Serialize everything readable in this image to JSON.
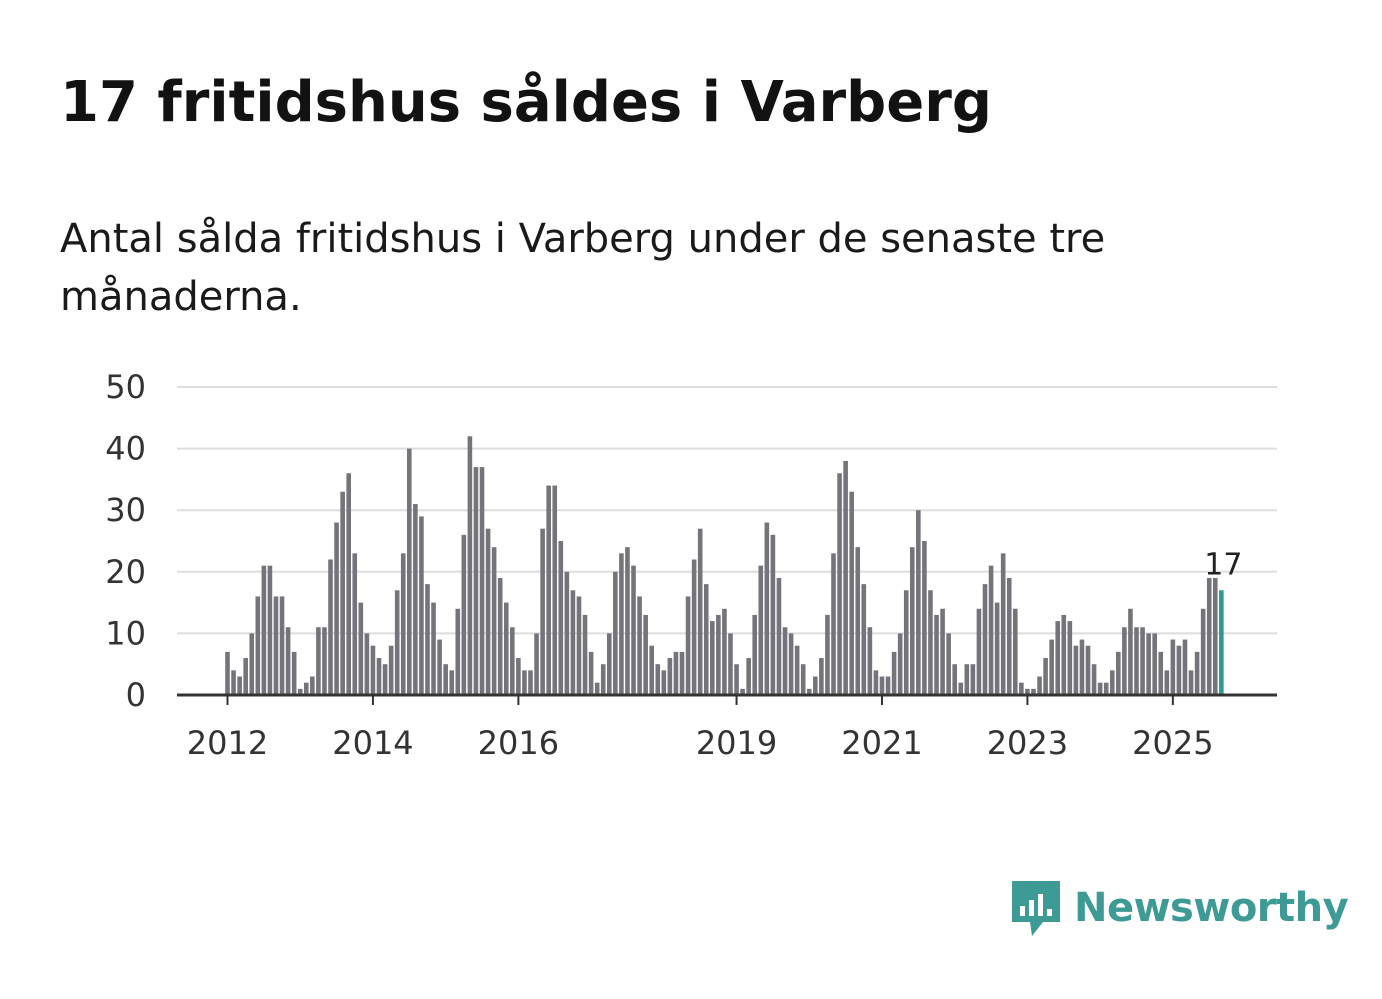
{
  "title": "17 fritidshus såldes i Varberg",
  "subtitle": "Antal sålda fritidshus i Varberg under de senaste tre månaderna.",
  "brand": {
    "name": "Newsworthy",
    "color": "#3e9a94",
    "icon": "newsworthy-logo-icon"
  },
  "colors": {
    "bar": "#75747a",
    "highlight": "#2a9b95",
    "grid": "#dddddd",
    "axis": "#333333"
  },
  "chart_data": {
    "type": "bar",
    "ylim": [
      0,
      50
    ],
    "yticks": [
      0,
      10,
      20,
      30,
      40,
      50
    ],
    "xticks": [
      "2012",
      "2014",
      "2016",
      "2019",
      "2021",
      "2023",
      "2025"
    ],
    "grid": true,
    "start": "2012-01",
    "values": [
      7,
      4,
      3,
      6,
      10,
      16,
      21,
      21,
      16,
      16,
      11,
      7,
      1,
      2,
      3,
      11,
      11,
      22,
      28,
      33,
      36,
      23,
      15,
      10,
      8,
      6,
      5,
      8,
      17,
      23,
      40,
      31,
      29,
      18,
      15,
      9,
      5,
      4,
      14,
      26,
      42,
      37,
      37,
      27,
      24,
      19,
      15,
      11,
      6,
      4,
      4,
      10,
      27,
      34,
      34,
      25,
      20,
      17,
      16,
      13,
      7,
      2,
      5,
      10,
      20,
      23,
      24,
      21,
      16,
      13,
      8,
      5,
      4,
      6,
      7,
      7,
      16,
      22,
      27,
      18,
      12,
      13,
      14,
      10,
      5,
      1,
      6,
      13,
      21,
      28,
      26,
      19,
      11,
      10,
      8,
      5,
      1,
      3,
      6,
      13,
      23,
      36,
      38,
      33,
      24,
      18,
      11,
      4,
      3,
      3,
      7,
      10,
      17,
      24,
      30,
      25,
      17,
      13,
      14,
      10,
      5,
      2,
      5,
      5,
      14,
      18,
      21,
      15,
      23,
      19,
      14,
      2,
      1,
      1,
      3,
      6,
      9,
      12,
      13,
      12,
      8,
      9,
      8,
      5,
      2,
      2,
      4,
      7,
      11,
      14,
      11,
      11,
      10,
      10,
      7,
      4,
      9,
      8,
      9,
      4,
      7,
      14,
      19,
      19,
      17
    ],
    "highlight_label": "17"
  }
}
